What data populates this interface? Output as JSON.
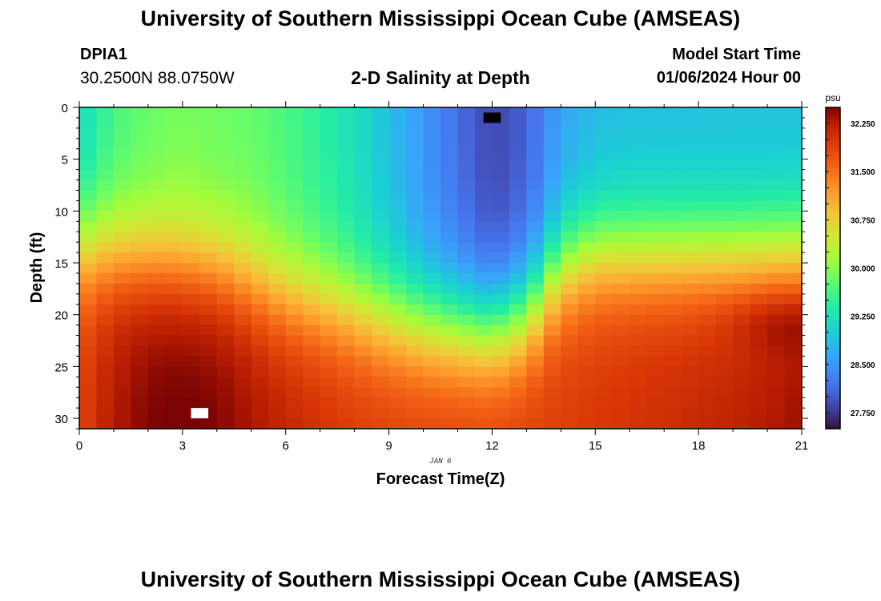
{
  "header": {
    "title": "University of Southern Mississippi Ocean Cube (AMSEAS)",
    "station_id": "DPIA1",
    "station_coords": "30.2500N  88.0750W",
    "subtitle": "2-D Salinity at Depth",
    "start_label": "Model Start Time",
    "start_value": "01/06/2024 Hour 00"
  },
  "footer": {
    "title": "University of Southern Mississippi Ocean Cube (AMSEAS)"
  },
  "colors": {
    "low": "#2e1a4a",
    "mid": "#2fd0a8",
    "high": "#7a0a05",
    "marker_dark": "#000000",
    "marker_light": "#ffffff"
  },
  "chart_data": {
    "type": "heatmap",
    "title": "2-D Salinity at Depth",
    "xlabel": "Forecast Time(Z)",
    "ylabel": "Depth (ft)",
    "date_label": "JAN 6",
    "xlim": [
      0,
      21
    ],
    "ylim": [
      0,
      31
    ],
    "x_ticks": [
      0,
      3,
      6,
      9,
      12,
      15,
      18,
      21
    ],
    "y_ticks": [
      0,
      5,
      10,
      15,
      20,
      25,
      30
    ],
    "colorbar": {
      "unit": "psu",
      "min": 27.5,
      "max": 32.5,
      "ticks": [
        "32.250",
        "31.500",
        "30.750",
        "30.000",
        "29.250",
        "28.500",
        "27.750"
      ]
    },
    "grid": {
      "time_step": 0.5,
      "depth_step": 1
    },
    "profiles": {
      "surface": [
        [
          0,
          29.1
        ],
        [
          1,
          29.6
        ],
        [
          2,
          29.8
        ],
        [
          3,
          29.9
        ],
        [
          4,
          29.85
        ],
        [
          5,
          29.8
        ],
        [
          6,
          29.65
        ],
        [
          7,
          29.45
        ],
        [
          8,
          29.2
        ],
        [
          9,
          28.85
        ],
        [
          10,
          28.5
        ],
        [
          11,
          28.15
        ],
        [
          12,
          27.85
        ],
        [
          13,
          28.05
        ],
        [
          14,
          28.6
        ],
        [
          15,
          28.8
        ],
        [
          16,
          28.85
        ],
        [
          17,
          28.85
        ],
        [
          18,
          28.85
        ],
        [
          19,
          28.85
        ],
        [
          20,
          28.85
        ],
        [
          21,
          28.85
        ]
      ],
      "bottom": [
        [
          0,
          31.9
        ],
        [
          1,
          32.3
        ],
        [
          2,
          32.5
        ],
        [
          3,
          32.55
        ],
        [
          4,
          32.5
        ],
        [
          5,
          32.35
        ],
        [
          6,
          32.2
        ],
        [
          7,
          32.1
        ],
        [
          8,
          32.0
        ],
        [
          9,
          31.95
        ],
        [
          10,
          31.95
        ],
        [
          11,
          31.95
        ],
        [
          12,
          31.95
        ],
        [
          13,
          31.95
        ],
        [
          14,
          31.95
        ],
        [
          15,
          32.0
        ],
        [
          16,
          32.05
        ],
        [
          17,
          32.1
        ],
        [
          18,
          32.15
        ],
        [
          19,
          32.2
        ],
        [
          20,
          32.3
        ],
        [
          21,
          32.4
        ]
      ],
      "halocline_depth_ft": [
        [
          0,
          13.5
        ],
        [
          2,
          14.5
        ],
        [
          4,
          15.5
        ],
        [
          6,
          18
        ],
        [
          8,
          19.5
        ],
        [
          10,
          21
        ],
        [
          12,
          21.5
        ],
        [
          13,
          20
        ],
        [
          14,
          15.5
        ],
        [
          15,
          14
        ],
        [
          17,
          14
        ],
        [
          19,
          14
        ],
        [
          21,
          14
        ]
      ],
      "deep_bulge": {
        "time": 20.5,
        "depth": 20.5,
        "value": 32.45
      }
    },
    "missing_cells": [
      {
        "time": 12.0,
        "depth": 1.0,
        "marker": "dark"
      },
      {
        "time": 3.5,
        "depth": 29.5,
        "marker": "light"
      }
    ]
  }
}
